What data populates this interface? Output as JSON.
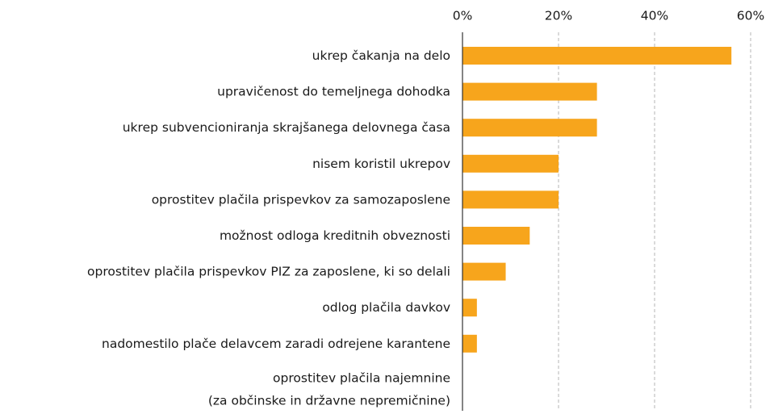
{
  "chart_data": {
    "type": "barh",
    "categories": [
      "ukrep čakanja na delo",
      "upravičenost do temeljnega dohodka",
      "ukrep subvencioniranja skrajšanega delovnega časa",
      "nisem koristil ukrepov",
      "oprostitev plačila prispevkov za samozaposlene",
      "možnost odloga kreditnih obveznosti",
      "oprostitev plačila prispevkov PIZ za zaposlene, ki so delali",
      "odlog plačila davkov",
      "nadomestilo plače delavcem zaradi odrejene karantene",
      "oprostitev plačila najemnine\n(za občinske in državne nepremičnine)"
    ],
    "values": [
      56,
      28,
      28,
      20,
      20,
      14,
      9,
      3,
      3,
      0
    ],
    "color": "#f7a51c",
    "xlim": [
      0,
      60
    ],
    "xticks": [
      {
        "value": 0,
        "label": "0%"
      },
      {
        "value": 20,
        "label": "20%"
      },
      {
        "value": 40,
        "label": "40%"
      },
      {
        "value": 60,
        "label": "60%"
      }
    ],
    "grid": true
  }
}
